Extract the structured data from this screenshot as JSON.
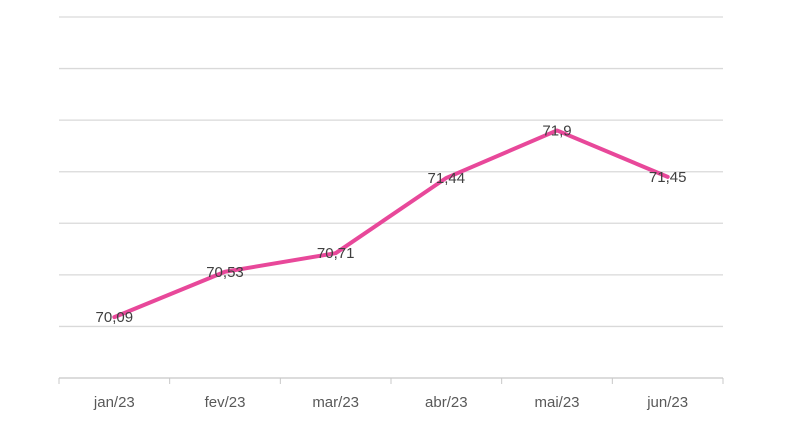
{
  "chart_data": {
    "type": "line",
    "categories": [
      "jan/23",
      "fev/23",
      "mar/23",
      "abr/23",
      "mai/23",
      "jun/23"
    ],
    "values": [
      70.09,
      70.53,
      70.71,
      71.44,
      71.9,
      71.45
    ],
    "data_labels": [
      "70,09",
      "70,53",
      "70,71",
      "71,44",
      "71,9",
      "71,45"
    ],
    "ylim": [
      69.5,
      73.0
    ],
    "y_gridline_step": 0.5,
    "grid": true,
    "line_color": "#e8489a",
    "title": "",
    "xlabel": "",
    "ylabel": ""
  }
}
